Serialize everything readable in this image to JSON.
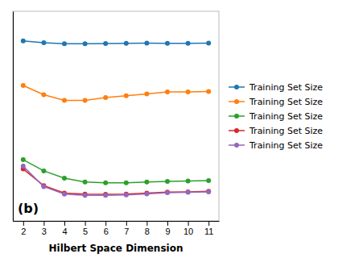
{
  "chart_data": {
    "type": "line",
    "x_label": "Hilbert Space Dimension",
    "x": [
      2,
      3,
      4,
      5,
      6,
      7,
      8,
      9,
      10,
      11
    ],
    "series": [
      {
        "name": "Training Set Size",
        "color": "#1f77b4",
        "values": [
          0.92,
          0.91,
          0.905,
          0.905,
          0.906,
          0.907,
          0.908,
          0.907,
          0.907,
          0.908
        ]
      },
      {
        "name": "Training Set Size",
        "color": "#ff7f0e",
        "values": [
          0.68,
          0.63,
          0.6,
          0.6,
          0.615,
          0.625,
          0.635,
          0.645,
          0.645,
          0.648
        ]
      },
      {
        "name": "Training Set Size",
        "color": "#2ca02c",
        "values": [
          0.28,
          0.22,
          0.18,
          0.16,
          0.155,
          0.155,
          0.16,
          0.163,
          0.165,
          0.167
        ]
      },
      {
        "name": "Training Set Size",
        "color": "#d62728",
        "values": [
          0.23,
          0.14,
          0.1,
          0.095,
          0.093,
          0.095,
          0.1,
          0.105,
          0.107,
          0.11
        ]
      },
      {
        "name": "Training Set Size",
        "color": "#9467bd",
        "values": [
          0.245,
          0.135,
          0.095,
          0.088,
          0.088,
          0.09,
          0.096,
          0.102,
          0.104,
          0.107
        ]
      }
    ],
    "xlim": [
      1.5,
      11.5
    ],
    "xticks": [
      2,
      3,
      4,
      5,
      6,
      7,
      8,
      9,
      10,
      11
    ],
    "ylim": [
      -0.05,
      1.08
    ],
    "tick_labels": "x",
    "grid": false,
    "legend": "right",
    "marker": "circle",
    "annotations": [
      {
        "text": "(b)"
      }
    ]
  }
}
